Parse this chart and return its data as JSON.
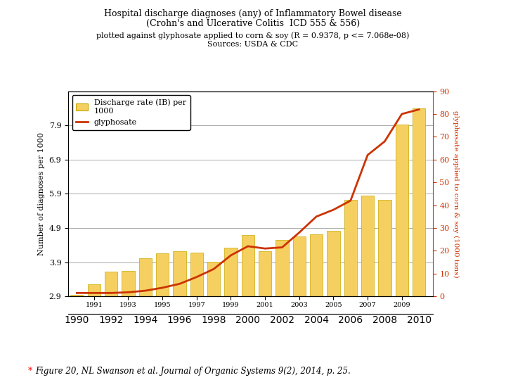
{
  "title_line1": "Hospital discharge diagnoses (any) of Inflammatory Bowel disease",
  "title_line2": "(Crohn's and Ulcerative Colitis  ICD 555 & 556)",
  "subtitle_line1": "plotted against glyphosate applied to corn & soy (R = 0.9378, p <= 7.068e-08)",
  "subtitle_line2": "Sources: USDA & CDC",
  "caption_star": "*",
  "caption_text": "Figure 20, NL Swanson et al. Journal of Organic Systems 9(2), 2014, p. 25.",
  "ylabel_left": "Number of diagnoses per 1000",
  "ylabel_right": "glyphosate applied to corn & soy (1000 tons)",
  "years": [
    1990,
    1991,
    1992,
    1993,
    1994,
    1995,
    1996,
    1997,
    1998,
    1999,
    2000,
    2001,
    2002,
    2003,
    2004,
    2005,
    2006,
    2007,
    2008,
    2009,
    2010
  ],
  "bar_values": [
    2.95,
    3.25,
    3.62,
    3.65,
    4.02,
    4.15,
    4.22,
    4.18,
    3.92,
    4.32,
    4.7,
    4.22,
    4.55,
    4.65,
    4.72,
    4.82,
    5.72,
    5.85,
    5.72,
    7.92,
    8.4
  ],
  "glyphosate_values": [
    1.5,
    1.5,
    1.5,
    1.8,
    2.5,
    3.8,
    5.5,
    8.5,
    12.0,
    18.0,
    22.0,
    21.0,
    21.5,
    28.0,
    35.0,
    38.0,
    42.0,
    62.0,
    68.0,
    80.0,
    82.0
  ],
  "bar_color": "#F5D060",
  "bar_edge_color": "#C8A800",
  "line_color": "#CC3300",
  "ylim_left": [
    2.9,
    8.9
  ],
  "ylim_right": [
    0,
    90
  ],
  "yticks_left": [
    2.9,
    3.9,
    4.9,
    5.9,
    6.9,
    7.9
  ],
  "yticks_right": [
    0,
    10,
    20,
    30,
    40,
    50,
    60,
    70,
    80,
    90
  ],
  "xlim": [
    1989.5,
    2010.8
  ],
  "odd_years": [
    1991,
    1993,
    1995,
    1997,
    1999,
    2001,
    2003,
    2005,
    2007,
    2009
  ],
  "even_years": [
    1990,
    1992,
    1994,
    1996,
    1998,
    2000,
    2002,
    2004,
    2006,
    2008,
    2010
  ]
}
